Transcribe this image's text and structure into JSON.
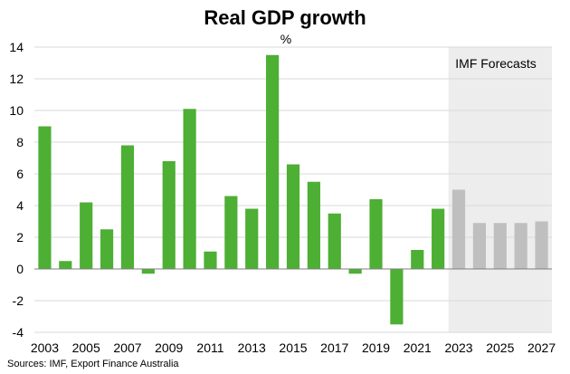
{
  "chart_data": {
    "type": "bar",
    "title": "Real GDP growth",
    "unit_label": "%",
    "xlabel": "",
    "ylabel": "%",
    "ylim": [
      -4,
      14
    ],
    "y_ticks": [
      -4,
      -2,
      0,
      2,
      4,
      6,
      8,
      10,
      12,
      14
    ],
    "categories": [
      "2003",
      "2004",
      "2005",
      "2006",
      "2007",
      "2008",
      "2009",
      "2010",
      "2011",
      "2012",
      "2013",
      "2014",
      "2015",
      "2016",
      "2017",
      "2018",
      "2019",
      "2020",
      "2021",
      "2022",
      "2023",
      "2024",
      "2025",
      "2026",
      "2027"
    ],
    "x_tick_labels": [
      "2003",
      "2005",
      "2007",
      "2009",
      "2011",
      "2013",
      "2015",
      "2017",
      "2019",
      "2021",
      "2023",
      "2025",
      "2027"
    ],
    "values": [
      9.0,
      0.5,
      4.2,
      2.5,
      7.8,
      -0.3,
      6.8,
      10.1,
      1.1,
      4.6,
      3.8,
      13.5,
      6.6,
      5.5,
      3.5,
      -0.3,
      4.4,
      -3.5,
      1.2,
      3.8,
      5.0,
      2.9,
      2.9,
      2.9,
      3.0
    ],
    "forecast_start": "2023",
    "forecast_label": "IMF Forecasts",
    "colors": {
      "actual": "#4daf34",
      "forecast": "#bfbfbf",
      "forecast_background": "#ededed",
      "gridline": "#d9d9d9",
      "axis": "#7f7f7f"
    },
    "grid": true,
    "source": "Sources: IMF, Export Finance Australia"
  }
}
